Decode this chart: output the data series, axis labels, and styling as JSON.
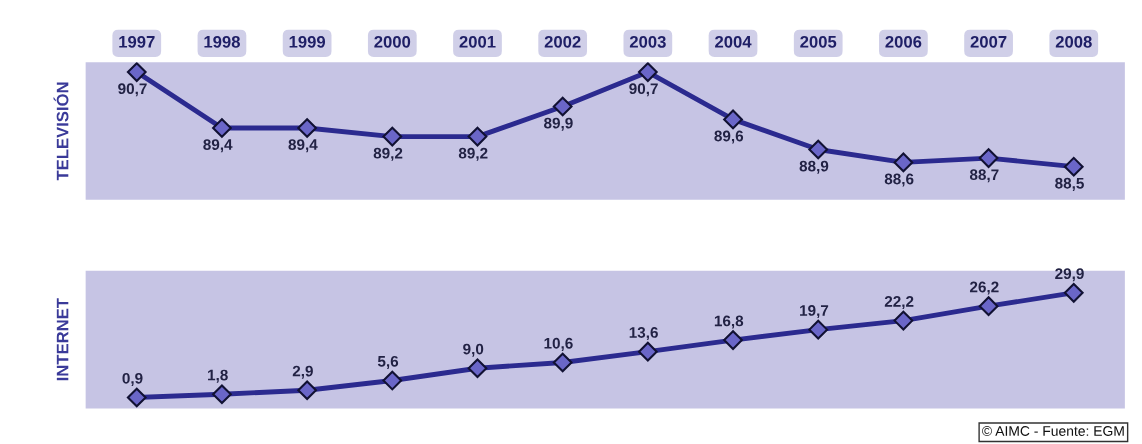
{
  "chart_data": [
    {
      "type": "line",
      "ylabel": "TELEVISIÓN",
      "categories": [
        "1997",
        "1998",
        "1999",
        "2000",
        "2001",
        "2002",
        "2003",
        "2004",
        "2005",
        "2006",
        "2007",
        "2008"
      ],
      "series": [
        {
          "color": "#2b2a8f",
          "values": [
            90.7,
            89.4,
            89.4,
            89.2,
            89.2,
            89.9,
            90.7,
            89.6,
            88.9,
            88.6,
            88.7,
            88.5
          ],
          "value_labels": [
            "90,7",
            "89,4",
            "89,4",
            "89,2",
            "89,2",
            "89,9",
            "90,7",
            "89,6",
            "88,9",
            "88,6",
            "88,7",
            "88,5"
          ]
        }
      ],
      "marker": "diamond",
      "line_style": "solid",
      "tick_labels": "x"
    },
    {
      "type": "line",
      "ylabel": "INTERNET",
      "categories": [
        "1997",
        "1998",
        "1999",
        "2000",
        "2001",
        "2002",
        "2003",
        "2004",
        "2005",
        "2006",
        "2007",
        "2008"
      ],
      "series": [
        {
          "color": "#2b2a8f",
          "values": [
            0.9,
            1.8,
            2.9,
            5.6,
            9.0,
            10.6,
            13.6,
            16.8,
            19.7,
            22.2,
            26.2,
            29.9
          ],
          "value_labels": [
            "0,9",
            "1,8",
            "2,9",
            "5,6",
            "9,0",
            "10,6",
            "13,6",
            "16,8",
            "19,7",
            "22,2",
            "26,2",
            "29,9"
          ]
        }
      ],
      "marker": "diamond",
      "line_style": "solid",
      "tick_labels": false,
      "annotations": [
        "© AIMC - Fuente: EGM"
      ]
    }
  ]
}
